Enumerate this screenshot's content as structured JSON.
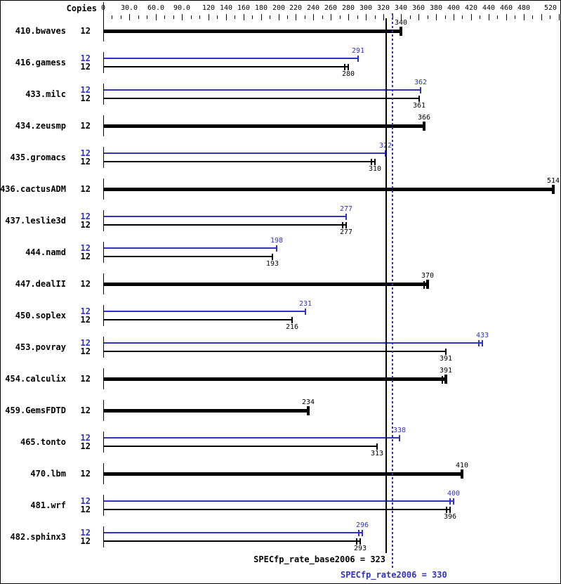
{
  "header": {
    "copies_label": "Copies"
  },
  "colors": {
    "peak": "#3232c0",
    "base": "#000000",
    "background": "#ffffff"
  },
  "footer": {
    "base_summary": "SPECfp_rate_base2006 = 323",
    "peak_summary": "SPECfp_rate2006 = 330"
  },
  "chart_data": {
    "type": "bar",
    "orientation": "horizontal",
    "title": "",
    "copies_column_label": "Copies",
    "axis": {
      "min": 0,
      "max": 520,
      "minor_tick_step": 10,
      "tick_labels": [
        "0",
        "30.0",
        "60.0",
        "90.0",
        "120",
        "140",
        "160",
        "180",
        "200",
        "220",
        "240",
        "260",
        "280",
        "300",
        "320",
        "340",
        "360",
        "380",
        "400",
        "420",
        "440",
        "460",
        "480",
        "520"
      ],
      "grid": false
    },
    "categories": [
      "410.bwaves",
      "416.gamess",
      "433.milc",
      "434.zeusmp",
      "435.gromacs",
      "436.cactusADM",
      "437.leslie3d",
      "444.namd",
      "447.dealII",
      "450.soplex",
      "453.povray",
      "454.calculix",
      "459.GemsFDTD",
      "465.tonto",
      "470.lbm",
      "481.wrf",
      "482.sphinx3"
    ],
    "copies": [
      12,
      12,
      12,
      12,
      12,
      12,
      12,
      12,
      12,
      12,
      12,
      12,
      12,
      12,
      12,
      12,
      12
    ],
    "series": [
      {
        "name": "peak",
        "color": "#3232c0",
        "values": [
          null,
          291,
          362,
          null,
          322,
          null,
          277,
          198,
          null,
          231,
          433,
          null,
          null,
          338,
          null,
          400,
          296
        ]
      },
      {
        "name": "base",
        "color": "#000000",
        "values": [
          340,
          280,
          361,
          366,
          310,
          514,
          277,
          193,
          370,
          216,
          391,
          391,
          234,
          313,
          410,
          396,
          293
        ]
      }
    ],
    "reference_lines": [
      {
        "label": "SPECfp_rate_base2006 = 323",
        "value": 323,
        "color": "#000000",
        "style": "solid"
      },
      {
        "label": "SPECfp_rate2006 = 330",
        "value": 330,
        "color": "#3232c0",
        "style": "dotted"
      }
    ],
    "rows": [
      {
        "name": "410.bwaves",
        "bars": [
          {
            "series": "base",
            "copies": "12",
            "value": 340,
            "spread": false
          }
        ]
      },
      {
        "name": "416.gamess",
        "bars": [
          {
            "series": "peak",
            "copies": "12",
            "value": 291,
            "spread": false
          },
          {
            "series": "base",
            "copies": "12",
            "value": 280,
            "spread": true
          }
        ]
      },
      {
        "name": "433.milc",
        "bars": [
          {
            "series": "peak",
            "copies": "12",
            "value": 362,
            "spread": false
          },
          {
            "series": "base",
            "copies": "12",
            "value": 361,
            "spread": false
          }
        ]
      },
      {
        "name": "434.zeusmp",
        "bars": [
          {
            "series": "base",
            "copies": "12",
            "value": 366,
            "spread": false
          }
        ]
      },
      {
        "name": "435.gromacs",
        "bars": [
          {
            "series": "peak",
            "copies": "12",
            "value": 322,
            "spread": false
          },
          {
            "series": "base",
            "copies": "12",
            "value": 310,
            "spread": true
          }
        ]
      },
      {
        "name": "436.cactusADM",
        "bars": [
          {
            "series": "base",
            "copies": "12",
            "value": 514,
            "spread": false
          }
        ]
      },
      {
        "name": "437.leslie3d",
        "bars": [
          {
            "series": "peak",
            "copies": "12",
            "value": 277,
            "spread": false
          },
          {
            "series": "base",
            "copies": "12",
            "value": 277,
            "spread": true
          }
        ]
      },
      {
        "name": "444.namd",
        "bars": [
          {
            "series": "peak",
            "copies": "12",
            "value": 198,
            "spread": false
          },
          {
            "series": "base",
            "copies": "12",
            "value": 193,
            "spread": false
          }
        ]
      },
      {
        "name": "447.dealII",
        "bars": [
          {
            "series": "base",
            "copies": "12",
            "value": 370,
            "spread": true
          }
        ]
      },
      {
        "name": "450.soplex",
        "bars": [
          {
            "series": "peak",
            "copies": "12",
            "value": 231,
            "spread": false
          },
          {
            "series": "base",
            "copies": "12",
            "value": 216,
            "spread": false
          }
        ]
      },
      {
        "name": "453.povray",
        "bars": [
          {
            "series": "peak",
            "copies": "12",
            "value": 433,
            "spread": true
          },
          {
            "series": "base",
            "copies": "12",
            "value": 391,
            "spread": false
          }
        ]
      },
      {
        "name": "454.calculix",
        "bars": [
          {
            "series": "base",
            "copies": "12",
            "value": 391,
            "spread": true
          }
        ]
      },
      {
        "name": "459.GemsFDTD",
        "bars": [
          {
            "series": "base",
            "copies": "12",
            "value": 234,
            "spread": false
          }
        ]
      },
      {
        "name": "465.tonto",
        "bars": [
          {
            "series": "peak",
            "copies": "12",
            "value": 338,
            "spread": false
          },
          {
            "series": "base",
            "copies": "12",
            "value": 313,
            "spread": false
          }
        ]
      },
      {
        "name": "470.lbm",
        "bars": [
          {
            "series": "base",
            "copies": "12",
            "value": 410,
            "spread": false
          }
        ]
      },
      {
        "name": "481.wrf",
        "bars": [
          {
            "series": "peak",
            "copies": "12",
            "value": 400,
            "spread": true
          },
          {
            "series": "base",
            "copies": "12",
            "value": 396,
            "spread": true
          }
        ]
      },
      {
        "name": "482.sphinx3",
        "bars": [
          {
            "series": "peak",
            "copies": "12",
            "value": 296,
            "spread": true
          },
          {
            "series": "base",
            "copies": "12",
            "value": 293,
            "spread": true
          }
        ]
      }
    ]
  }
}
